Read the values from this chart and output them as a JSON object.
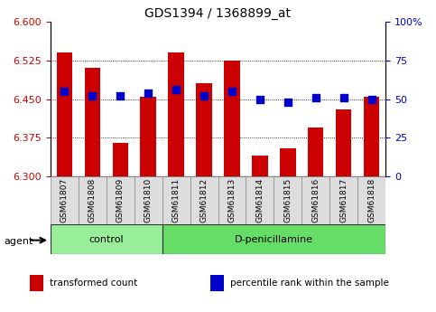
{
  "title": "GDS1394 / 1368899_at",
  "samples": [
    "GSM61807",
    "GSM61808",
    "GSM61809",
    "GSM61810",
    "GSM61811",
    "GSM61812",
    "GSM61813",
    "GSM61814",
    "GSM61815",
    "GSM61816",
    "GSM61817",
    "GSM61818"
  ],
  "transformed_count": [
    6.54,
    6.51,
    6.365,
    6.455,
    6.54,
    6.48,
    6.525,
    6.34,
    6.355,
    6.395,
    6.43,
    6.455
  ],
  "percentile_rank": [
    55,
    52,
    52,
    54,
    56,
    52,
    55,
    50,
    48,
    51,
    51,
    50
  ],
  "ylim_left": [
    6.3,
    6.6
  ],
  "ylim_right": [
    0,
    100
  ],
  "yticks_left": [
    6.3,
    6.375,
    6.45,
    6.525,
    6.6
  ],
  "yticks_right": [
    0,
    25,
    50,
    75,
    100
  ],
  "bar_color": "#cc0000",
  "dot_color": "#0000cc",
  "bar_bottom": 6.3,
  "groups": [
    {
      "label": "control",
      "start": 0,
      "end": 4,
      "color": "#99ee99"
    },
    {
      "label": "D-penicillamine",
      "start": 4,
      "end": 12,
      "color": "#66dd66"
    }
  ],
  "agent_label": "agent",
  "legend_items": [
    {
      "color": "#cc0000",
      "label": "transformed count"
    },
    {
      "color": "#0000cc",
      "label": "percentile rank within the sample"
    }
  ],
  "grid_color": "black",
  "background_color": "#ffffff",
  "tick_label_color_left": "#cc0000",
  "tick_label_color_right": "#0000cc",
  "bar_width": 0.55,
  "dot_size": 28,
  "grid_ticks": [
    6.375,
    6.45,
    6.525
  ],
  "xlabel_box_color": "#dddddd",
  "xlabel_box_edge": "#888888"
}
